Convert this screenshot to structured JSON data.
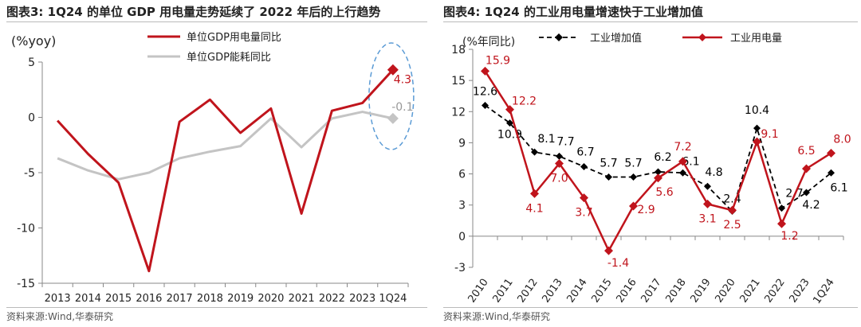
{
  "colors": {
    "red": "#c0141c",
    "gray": "#c4c4c4",
    "black": "#000000",
    "highlight": "#5b9bd5"
  },
  "left": {
    "title": "图表3:  1Q24 的单位 GDP 用电量走势延续了 2022 年后的上行趋势",
    "source": "资料来源:Wind,华泰研究"
  },
  "right": {
    "title": "图表4:  1Q24 的工业用电量增速快于工业增加值",
    "source": "资料来源:Wind,华泰研究"
  },
  "chart_data": [
    {
      "type": "line",
      "title": "图表3:  1Q24 的单位 GDP 用电量走势延续了 2022 年后的上行趋势",
      "ylabel": "(%yoy)",
      "ylim": [
        -15,
        5
      ],
      "yticks": [
        5,
        0,
        -5,
        -10,
        -15
      ],
      "categories": [
        "2013",
        "2014",
        "2015",
        "2016",
        "2017",
        "2018",
        "2019",
        "2020",
        "2021",
        "2022",
        "2023",
        "1Q24"
      ],
      "series": [
        {
          "name": "单位GDP用电量同比",
          "color": "#c0141c",
          "values": [
            -0.3,
            -3.3,
            -5.9,
            -13.9,
            -0.4,
            1.6,
            -1.4,
            0.8,
            -8.7,
            0.6,
            1.3,
            4.3
          ],
          "last_label": "4.3"
        },
        {
          "name": "单位GDP能耗同比",
          "color": "#c4c4c4",
          "values": [
            -3.7,
            -4.8,
            -5.6,
            -5.0,
            -3.7,
            -3.1,
            -2.6,
            -0.1,
            -2.7,
            -0.1,
            0.5,
            -0.1
          ],
          "last_label": "-0.1"
        }
      ],
      "legend_position": "top-center",
      "grid": false,
      "annotation": "dashed ellipse highlighting 1Q24"
    },
    {
      "type": "line",
      "title": "图表4:  1Q24 的工业用电量增速快于工业增加值",
      "ylabel": "(%年同比)",
      "ylim": [
        -3,
        18
      ],
      "yticks": [
        18,
        15,
        12,
        9,
        6,
        3,
        0,
        -3
      ],
      "categories": [
        "2010",
        "2011",
        "2012",
        "2013",
        "2014",
        "2015",
        "2016",
        "2017",
        "2018",
        "2019",
        "2020",
        "2021",
        "2022",
        "2023",
        "1Q24"
      ],
      "series": [
        {
          "name": "工业增加值",
          "color": "#000000",
          "dashed": true,
          "values": [
            12.6,
            10.9,
            8.1,
            7.7,
            6.7,
            5.7,
            5.7,
            6.2,
            6.1,
            4.8,
            2.4,
            10.4,
            2.7,
            4.2,
            6.1
          ],
          "labels": [
            "12.6",
            "10.9",
            "8.1",
            "7.7",
            "6.7",
            "5.7",
            "5.7",
            "6.2",
            "6.1",
            "4.8",
            "2.4",
            "10.4",
            "2.7",
            "4.2",
            "6.1"
          ]
        },
        {
          "name": "工业用电量",
          "color": "#c0141c",
          "dashed": false,
          "values": [
            15.9,
            12.2,
            4.1,
            7.0,
            3.7,
            -1.4,
            2.9,
            5.6,
            7.2,
            3.1,
            2.5,
            9.1,
            1.2,
            6.5,
            8.0
          ],
          "labels": [
            "15.9",
            "12.2",
            "4.1",
            "7.0",
            "3.7",
            "-1.4",
            "2.9",
            "5.6",
            "7.2",
            "3.1",
            "2.5",
            "9.1",
            "1.2",
            "6.5",
            "8.0"
          ]
        }
      ],
      "legend_position": "top",
      "grid": false
    }
  ]
}
